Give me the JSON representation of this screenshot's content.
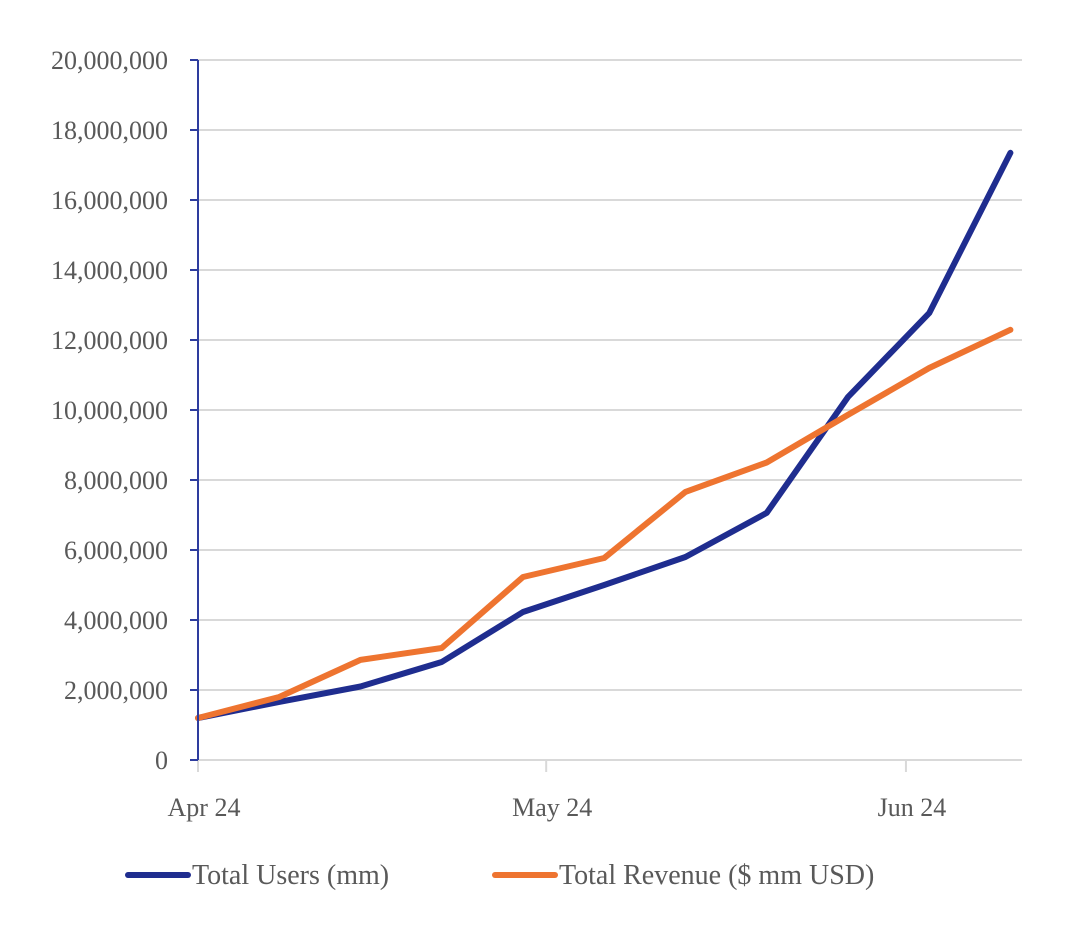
{
  "chart_data": {
    "type": "line",
    "title": "",
    "xlabel": "",
    "ylabel": "",
    "x": [
      "2024-04-01",
      "2024-04-08",
      "2024-04-15",
      "2024-04-22",
      "2024-04-29",
      "2024-05-06",
      "2024-05-13",
      "2024-05-20",
      "2024-05-27",
      "2024-06-03",
      "2024-06-10"
    ],
    "xlim": [
      "2024-04-01",
      "2024-06-11"
    ],
    "x_ticks": [
      {
        "date": "2024-04-01",
        "label": "Apr 24"
      },
      {
        "date": "2024-05-01",
        "label": "May 24"
      },
      {
        "date": "2024-06-01",
        "label": "Jun 24"
      }
    ],
    "ylim": [
      0,
      20000000
    ],
    "y_ticks": [
      {
        "value": 0,
        "label": "0"
      },
      {
        "value": 2000000,
        "label": "2,000,000"
      },
      {
        "value": 4000000,
        "label": "4,000,000"
      },
      {
        "value": 6000000,
        "label": "6,000,000"
      },
      {
        "value": 8000000,
        "label": "8,000,000"
      },
      {
        "value": 10000000,
        "label": "10,000,000"
      },
      {
        "value": 12000000,
        "label": "12,000,000"
      },
      {
        "value": 14000000,
        "label": "14,000,000"
      },
      {
        "value": 16000000,
        "label": "16,000,000"
      },
      {
        "value": 18000000,
        "label": "18,000,000"
      },
      {
        "value": 20000000,
        "label": "20,000,000"
      }
    ],
    "grid": "horizontal",
    "legend_position": "bottom",
    "series": [
      {
        "name": "Total Users (mm)",
        "color": "#1F2D8F",
        "values": [
          1200000,
          1660000,
          2100000,
          2800000,
          4230000,
          5000000,
          5800000,
          7060000,
          10370000,
          12770000,
          17350000
        ]
      },
      {
        "name": "Total Revenue ($ mm USD)",
        "color": "#EE7430",
        "values": [
          1200000,
          1800000,
          2860000,
          3200000,
          5230000,
          5770000,
          7660000,
          8500000,
          9860000,
          11200000,
          12290000
        ]
      }
    ],
    "colors": {
      "axis": "#2E3C9E",
      "grid": "#D9D9D9",
      "text": "#595959"
    }
  }
}
